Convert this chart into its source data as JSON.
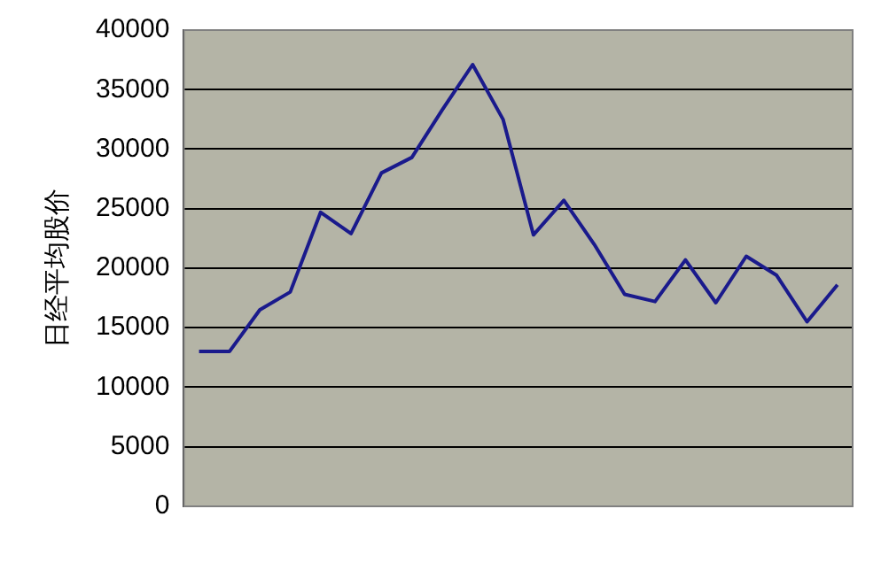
{
  "chart_data": {
    "type": "line",
    "ylabel": "日经平均股价",
    "categories": [
      null,
      null,
      null,
      null,
      null,
      null,
      null,
      null,
      null,
      null,
      null,
      null,
      null,
      null,
      null,
      null,
      null,
      null,
      null,
      null,
      null,
      null
    ],
    "series": [
      {
        "color": "#1a1a8c",
        "values": [
          13000,
          13000,
          16500,
          18000,
          24700,
          22900,
          28000,
          29300,
          33300,
          37100,
          32500,
          22800,
          25700,
          22000,
          17800,
          17200,
          20700,
          17100,
          21000,
          19400,
          15500,
          18600
        ]
      }
    ],
    "ylim": [
      0,
      40000
    ],
    "yticks": [
      0,
      5000,
      10000,
      15000,
      20000,
      25000,
      30000,
      35000,
      40000
    ],
    "grid": "y",
    "legend": false,
    "marker": "none",
    "line_style": "solid"
  }
}
